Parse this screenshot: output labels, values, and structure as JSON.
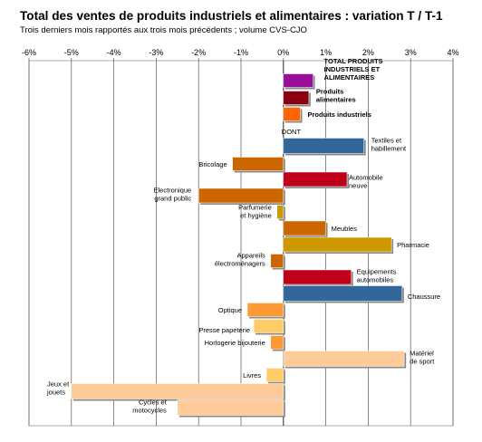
{
  "title": "Total des ventes de produits industriels et alimentaires : variation T / T-1",
  "subtitle": "Trois derniers mois rapportés aux trois mois précédents ; volume CVS-CJO",
  "chart_data": {
    "type": "bar",
    "orientation": "horizontal",
    "title": "Total des ventes de produits industriels et alimentaires : variation T / T-1",
    "subtitle": "Trois derniers mois rapportés aux trois mois précédents ; volume CVS-CJO",
    "xlim": [
      -6,
      4
    ],
    "x_ticks": [
      "-6%",
      "-5%",
      "-4%",
      "-3%",
      "-2%",
      "-1%",
      "0%",
      "1%",
      "2%",
      "3%",
      "4%"
    ],
    "grid": "vertical",
    "separator_label": "DONT",
    "categories": [
      "TOTAL PRODUITS INDUSTRIELS ET ALIMENTAIRES",
      "Produits alimentaires",
      "Produits industriels",
      "Textiles et habillement",
      "Bricolage",
      "Automobile neuve",
      "Electronique grand public",
      "Parfumerie et hygiène",
      "Meubles",
      "Pharmacie",
      "Appareils électroménagers",
      "Equipements automobiles",
      "Chaussure",
      "Optique",
      "Presse papeterie",
      "Horlogerie bijouterie",
      "Matériel de sport",
      "Livres",
      "Jeux et jouets",
      "Cycles et motocycles"
    ],
    "values": [
      0.7,
      0.6,
      0.4,
      1.9,
      -1.2,
      1.5,
      -2.0,
      -0.15,
      1.0,
      2.55,
      -0.3,
      1.6,
      2.8,
      -0.85,
      -0.7,
      -0.3,
      2.85,
      -0.4,
      -5.0,
      -2.5
    ],
    "colors": [
      "#9b0e99",
      "#8b0010",
      "#ff6600",
      "#336699",
      "#cc6600",
      "#c0001a",
      "#cc6600",
      "#cc9900",
      "#cc6600",
      "#cc9900",
      "#cc6600",
      "#c0001a",
      "#336699",
      "#ff9933",
      "#ffcc66",
      "#ff9933",
      "#ffcc99",
      "#ffcc66",
      "#ffcc99",
      "#ffcc99"
    ]
  }
}
